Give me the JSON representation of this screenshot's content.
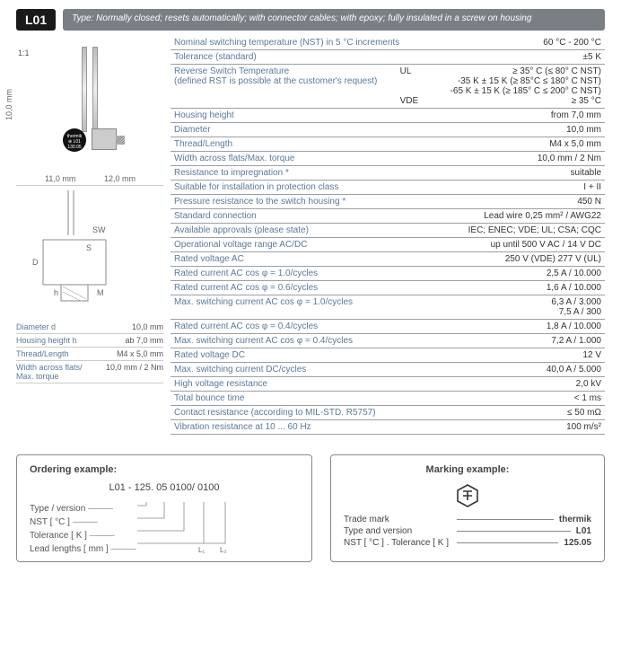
{
  "header": {
    "badge": "L01",
    "type_bar": "Type: Normally closed; resets automatically; with connector cables; with epoxy; fully insulated in a screw on housing"
  },
  "left": {
    "scale": "1:1",
    "dim_h1": "11,0 mm",
    "dim_h2": "12,0 mm",
    "dim_v": "10,0 mm",
    "sensor_text": "thermik\n⊕ L01\n130.05",
    "diagram_labels": {
      "sw": "SW",
      "d": "D",
      "h": "h",
      "m": "M",
      "s": "S"
    },
    "small_specs": [
      {
        "label": "Diameter d",
        "value": "10,0 mm"
      },
      {
        "label": "Housing height h",
        "value": "ab 7,0 mm"
      },
      {
        "label": "Thread/Length",
        "value": "M4 x 5,0 mm"
      },
      {
        "label": "Width across flats/\nMax. torque",
        "value": "10,0 mm / 2 Nm"
      }
    ]
  },
  "specs": [
    {
      "l": "Nominal switching temperature (NST) in 5 °C increments",
      "r": "60 °C - 200 °C"
    },
    {
      "l": "Tolerance (standard)",
      "r": "±5 K"
    },
    {
      "l": "Reverse Switch Temperature\n(defined RST is possible at the customer's request)",
      "mid_labels": [
        "UL",
        "",
        "",
        "VDE"
      ],
      "r": "≥ 35° C (≤ 80° C NST)\n-35 K ± 15 K (≥ 85°C ≤ 180° C NST)\n-65 K ± 15 K (≥ 185° C ≤ 200° C NST)\n≥ 35 °C",
      "multi": true
    },
    {
      "l": "Housing height",
      "r": "from 7,0 mm"
    },
    {
      "l": "Diameter",
      "r": "10,0 mm"
    },
    {
      "l": "Thread/Length",
      "r": "M4 x 5,0 mm"
    },
    {
      "l": "Width across flats/Max. torque",
      "r": "10,0 mm / 2 Nm"
    },
    {
      "l": "Resistance to impregnation *",
      "r": "suitable"
    },
    {
      "l": "Suitable for installation in protection class",
      "r": "I + II"
    },
    {
      "l": "Pressure resistance to the switch housing *",
      "r": "450 N"
    },
    {
      "l": "Standard connection",
      "r": "Lead wire 0,25 mm² / AWG22"
    },
    {
      "l": "Available approvals (please state)",
      "r": "IEC; ENEC; VDE; UL; CSA; CQC"
    },
    {
      "l": "Operational voltage range AC/DC",
      "r": "up until 500 V AC / 14 V DC"
    },
    {
      "l": "Rated voltage AC",
      "r": "250 V (VDE) 277 V (UL)"
    },
    {
      "l": "Rated current AC cos φ = 1.0/cycles",
      "r": "2,5 A / 10.000"
    },
    {
      "l": "Rated current AC cos φ = 0.6/cycles",
      "r": "1,6 A / 10.000"
    },
    {
      "l": "Max. switching current  AC cos φ = 1.0/cycles",
      "r": "6,3 A / 3.000\n7,5 A / 300",
      "multi": true
    },
    {
      "l": "Rated current AC cos φ = 0.4/cycles",
      "r": "1,8 A / 10.000"
    },
    {
      "l": "Max. switching current  AC cos φ = 0.4/cycles",
      "r": "7,2 A / 1.000"
    },
    {
      "l": "Rated voltage DC",
      "r": "12 V"
    },
    {
      "l": "Max. switching current DC/cycles",
      "r": "40,0 A / 5.000"
    },
    {
      "l": "High voltage resistance",
      "r": "2,0 kV"
    },
    {
      "l": "Total bounce time",
      "r": "< 1 ms"
    },
    {
      "l": "Contact resistance (according to MIL-STD. R5757)",
      "r": "≤ 50 mΩ"
    },
    {
      "l": "Vibration resistance at 10 ... 60 Hz",
      "r": "100 m/s²"
    }
  ],
  "ordering": {
    "title": "Ordering example:",
    "code": "L01 - 125. 05 0100/ 0100",
    "lines": [
      "Type / version",
      "NST [ °C ]",
      "Tolerance [ K ]",
      "Lead lengths [ mm ]"
    ],
    "l1": "L₁",
    "l2": "L₂"
  },
  "marking": {
    "title": "Marking example:",
    "rows": [
      {
        "label": "Trade mark",
        "value": "thermik"
      },
      {
        "label": "Type and version",
        "value": "L01"
      },
      {
        "label": "NST [ °C ] . Tolerance [ K ]",
        "value": "125.05"
      }
    ]
  }
}
